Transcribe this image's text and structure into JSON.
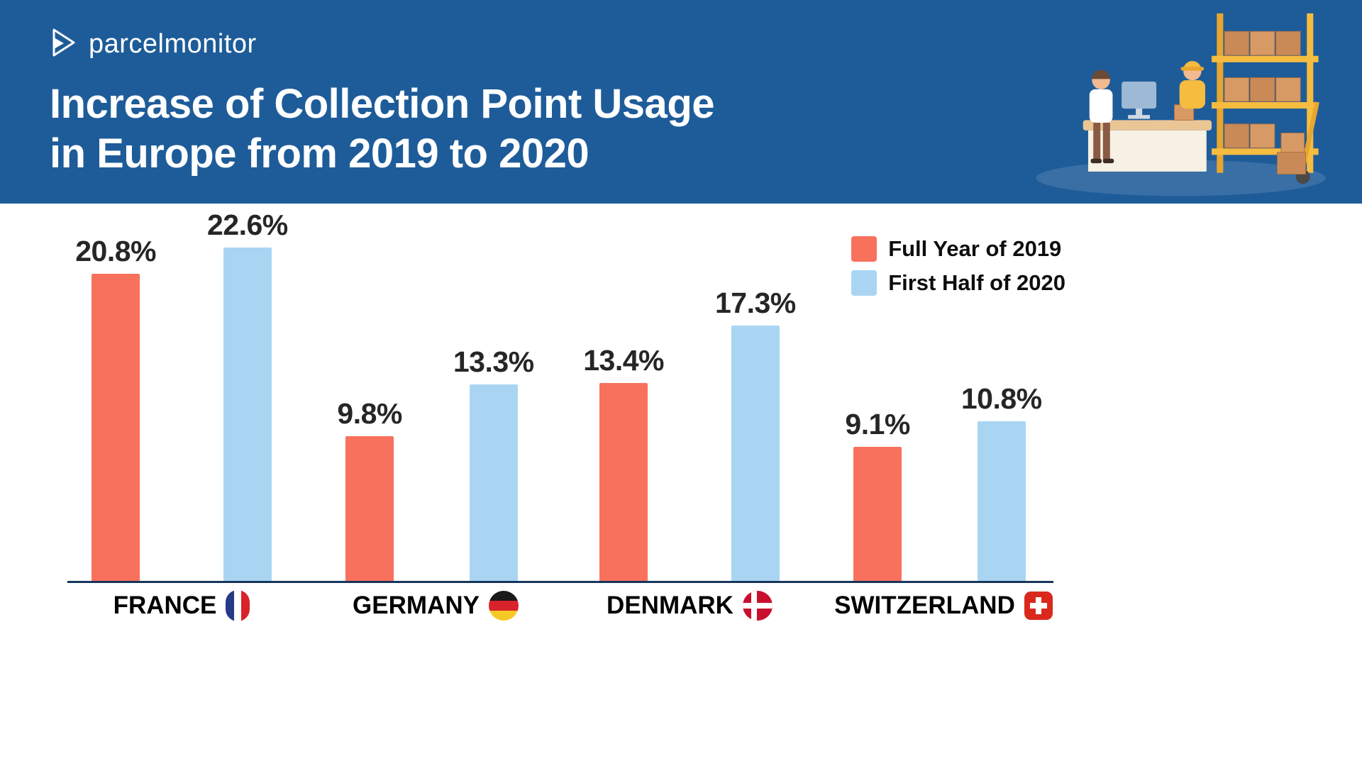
{
  "header": {
    "logo_text": "parcelmonitor",
    "title_line1": "Increase of Collection Point Usage",
    "title_line2": "in Europe from 2019 to 2020",
    "bg_color": "#1e5c99"
  },
  "chart_data": {
    "type": "bar",
    "title": "Increase of Collection Point Usage in Europe from 2019 to 2020",
    "categories": [
      "FRANCE",
      "GERMANY",
      "DENMARK",
      "SWITZERLAND"
    ],
    "series": [
      {
        "name": "Full Year of 2019",
        "color": "#f8715c",
        "values": [
          20.8,
          9.8,
          13.4,
          9.1
        ],
        "labels": [
          "20.8%",
          "9.8%",
          "13.4%",
          "9.1%"
        ]
      },
      {
        "name": "First Half of 2020",
        "color": "#a9d5f3",
        "values": [
          22.6,
          13.3,
          17.3,
          10.8
        ],
        "labels": [
          "22.6%",
          "13.3%",
          "17.3%",
          "10.8%"
        ]
      }
    ],
    "value_suffix": "%",
    "ylim": [
      0,
      25
    ],
    "grid": false,
    "legend_position": "top-right",
    "axis_line_color": "#16365c"
  }
}
